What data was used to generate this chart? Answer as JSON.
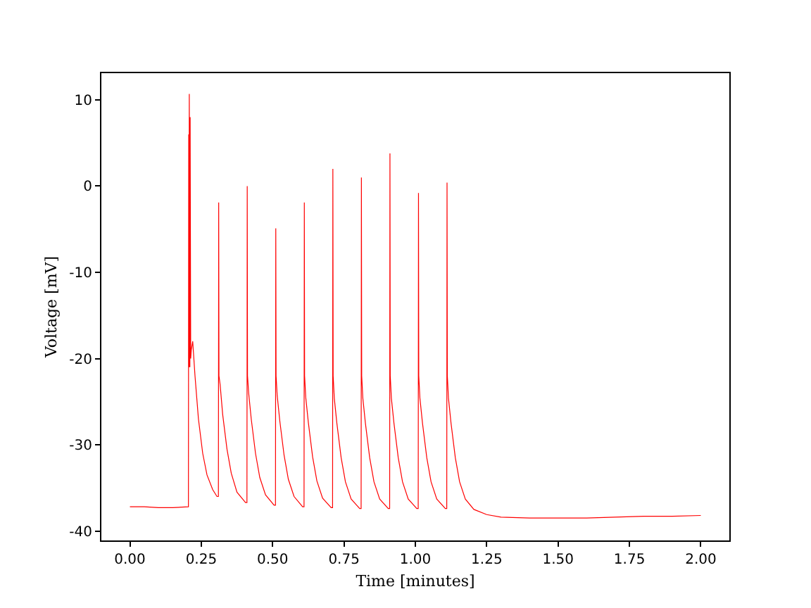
{
  "chart_data": {
    "type": "line",
    "xlabel": "Time [minutes]",
    "ylabel": "Voltage [mV]",
    "xlim": [
      -0.1,
      2.1
    ],
    "xticks": [
      {
        "value": 0,
        "label": "0.00"
      },
      {
        "value": 0.25,
        "label": "0.25"
      },
      {
        "value": 0.5,
        "label": "0.50"
      },
      {
        "value": 0.75,
        "label": "0.75"
      },
      {
        "value": 1,
        "label": "1.00"
      },
      {
        "value": 1.25,
        "label": "1.25"
      },
      {
        "value": 1.5,
        "label": "1.50"
      },
      {
        "value": 1.75,
        "label": "1.75"
      },
      {
        "value": 2,
        "label": "2.00"
      }
    ],
    "ylim": [
      -41.1,
      13.1
    ],
    "yticks": [
      -40,
      -30,
      -20,
      -10,
      0,
      10
    ],
    "grid": false,
    "marker": "none",
    "line_style": "solid",
    "series": [
      {
        "color": "#ff0000",
        "x": [
          0,
          0.05,
          0.1,
          0.15,
          0.205,
          0.206,
          0.207,
          0.208,
          0.21,
          0.211,
          0.213,
          0.215,
          0.22,
          0.228,
          0.24,
          0.255,
          0.27,
          0.29,
          0.305,
          0.31,
          0.311,
          0.312,
          0.316,
          0.325,
          0.34,
          0.355,
          0.375,
          0.405,
          0.41,
          0.411,
          0.412,
          0.416,
          0.425,
          0.44,
          0.455,
          0.475,
          0.505,
          0.51,
          0.511,
          0.512,
          0.516,
          0.525,
          0.54,
          0.555,
          0.575,
          0.605,
          0.61,
          0.611,
          0.612,
          0.616,
          0.625,
          0.64,
          0.655,
          0.675,
          0.705,
          0.71,
          0.711,
          0.712,
          0.716,
          0.725,
          0.74,
          0.755,
          0.775,
          0.805,
          0.81,
          0.811,
          0.812,
          0.816,
          0.825,
          0.84,
          0.855,
          0.875,
          0.905,
          0.91,
          0.911,
          0.912,
          0.916,
          0.925,
          0.94,
          0.955,
          0.975,
          1.005,
          1.01,
          1.011,
          1.012,
          1.016,
          1.025,
          1.04,
          1.055,
          1.075,
          1.105,
          1.11,
          1.111,
          1.112,
          1.116,
          1.125,
          1.14,
          1.155,
          1.175,
          1.205,
          1.25,
          1.3,
          1.4,
          1.5,
          1.6,
          1.7,
          1.8,
          1.9,
          2.0
        ],
        "values": [
          -37.2,
          -37.2,
          -37.3,
          -37.3,
          -37.2,
          6,
          -21,
          10.7,
          -21,
          8,
          -20,
          -19,
          -18,
          -22,
          -27,
          -31,
          -33.5,
          -35.2,
          -36,
          -36,
          -1.9,
          -22,
          -23,
          -26.5,
          -30.5,
          -33.3,
          -35.5,
          -36.7,
          -36.7,
          0.0,
          -22,
          -24,
          -27,
          -31,
          -33.8,
          -35.8,
          -37,
          -37,
          -4.9,
          -22,
          -24.3,
          -27.2,
          -31.2,
          -34,
          -36,
          -37.2,
          -37.2,
          -1.9,
          -22,
          -24.5,
          -27.4,
          -31.4,
          -34.2,
          -36.2,
          -37.3,
          -37.3,
          2.0,
          -22,
          -24.6,
          -27.5,
          -31.5,
          -34.3,
          -36.3,
          -37.4,
          -37.4,
          1.0,
          -22,
          -24.6,
          -27.5,
          -31.5,
          -34.3,
          -36.3,
          -37.4,
          -37.4,
          3.8,
          -22,
          -24.6,
          -27.5,
          -31.5,
          -34.3,
          -36.3,
          -37.4,
          -37.4,
          -0.8,
          -22,
          -24.6,
          -27.5,
          -31.5,
          -34.3,
          -36.3,
          -37.4,
          -37.4,
          0.4,
          -22,
          -24.6,
          -27.5,
          -31.5,
          -34.3,
          -36.3,
          -37.5,
          -38.1,
          -38.4,
          -38.5,
          -38.5,
          -38.5,
          -38.4,
          -38.3,
          -38.3,
          -38.2
        ]
      }
    ]
  }
}
